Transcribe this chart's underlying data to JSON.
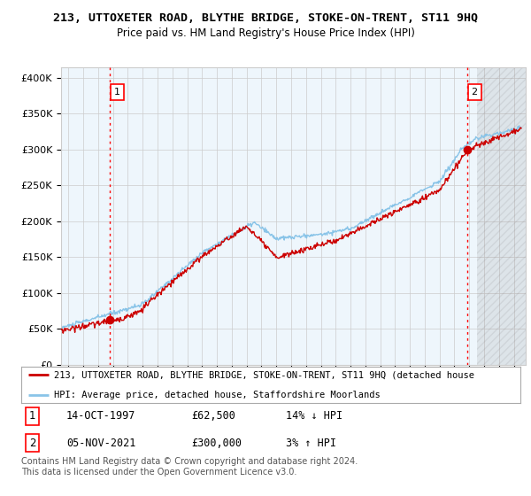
{
  "title": "213, UTTOXETER ROAD, BLYTHE BRIDGE, STOKE-ON-TRENT, ST11 9HQ",
  "subtitle": "Price paid vs. HM Land Registry's House Price Index (HPI)",
  "ylabel_ticks": [
    "£0",
    "£50K",
    "£100K",
    "£150K",
    "£200K",
    "£250K",
    "£300K",
    "£350K",
    "£400K"
  ],
  "ytick_vals": [
    0,
    50000,
    100000,
    150000,
    200000,
    250000,
    300000,
    350000,
    400000
  ],
  "ylim": [
    0,
    415000
  ],
  "xlim_start": 1994.5,
  "xlim_end": 2025.8,
  "hpi_color": "#89c4e8",
  "price_color": "#cc0000",
  "point1_x": 1997.79,
  "point1_y": 62500,
  "point2_x": 2021.85,
  "point2_y": 300000,
  "annotation1": "1",
  "annotation2": "2",
  "vline1_x": 1997.79,
  "vline2_x": 2021.85,
  "hatch_start": 2022.5,
  "legend_line1": "213, UTTOXETER ROAD, BLYTHE BRIDGE, STOKE-ON-TRENT, ST11 9HQ (detached house",
  "legend_line2": "HPI: Average price, detached house, Staffordshire Moorlands",
  "table_row1": [
    "1",
    "14-OCT-1997",
    "£62,500",
    "14% ↓ HPI"
  ],
  "table_row2": [
    "2",
    "05-NOV-2021",
    "£300,000",
    "3% ↑ HPI"
  ],
  "footnote": "Contains HM Land Registry data © Crown copyright and database right 2024.\nThis data is licensed under the Open Government Licence v3.0.",
  "background_color": "#ffffff",
  "chart_bg": "#eef6fc",
  "grid_color": "#cccccc"
}
